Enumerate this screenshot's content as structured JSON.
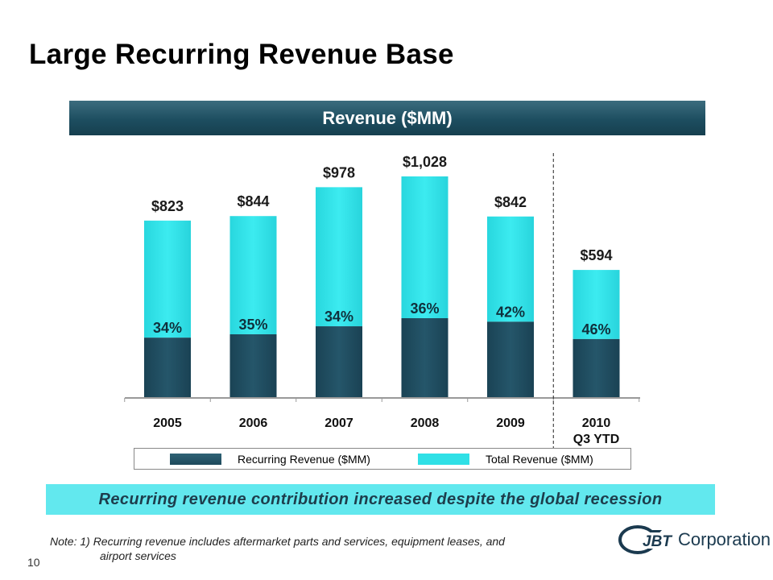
{
  "slide": {
    "title": "Large Recurring Revenue Base",
    "chart_header": "Revenue ($MM)",
    "callout": "Recurring revenue contribution increased despite the global recession",
    "note_line1": "Note: 1) Recurring revenue includes aftermarket parts and services, equipment leases, and",
    "note_line2": "airport services",
    "page_number": "10",
    "logo_mark": "JBT",
    "logo_word": "Corporation"
  },
  "chart_data": {
    "type": "bar",
    "title": "Revenue ($MM)",
    "categories": [
      "2005",
      "2006",
      "2007",
      "2008",
      "2009",
      "2010"
    ],
    "category_sublabels": [
      "",
      "",
      "",
      "",
      "",
      "Q3 YTD"
    ],
    "series": [
      {
        "name": "Recurring Revenue ($MM)",
        "color": "#1e4a5c",
        "share_labels": [
          "34%",
          "35%",
          "34%",
          "36%",
          "42%",
          "46%"
        ],
        "share": [
          34,
          35,
          34,
          36,
          42,
          46
        ]
      },
      {
        "name": "Total Revenue ($MM)",
        "color": "#2fe0e6",
        "values": [
          823,
          844,
          978,
          1028,
          842,
          594
        ],
        "value_labels": [
          "$823",
          "$844",
          "$978",
          "$1,028",
          "$842",
          "$594"
        ]
      }
    ],
    "ylim": [
      0,
      1028
    ],
    "grid": false,
    "legend_position": "bottom",
    "divider_between": [
      "2009",
      "2010"
    ]
  }
}
